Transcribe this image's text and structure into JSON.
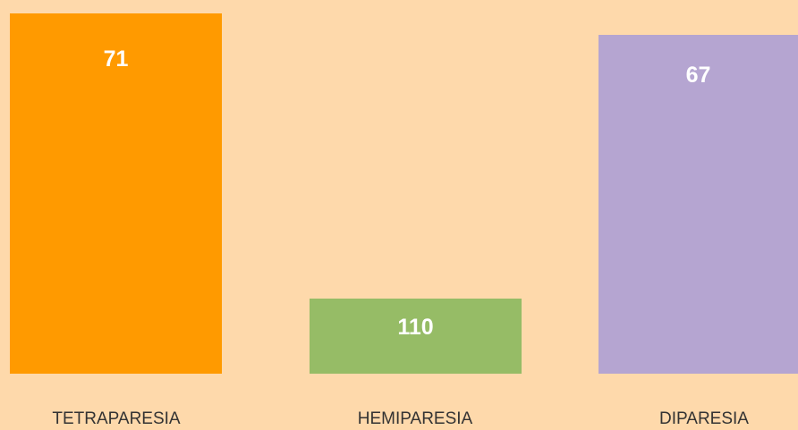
{
  "items": [
    {
      "label": "TETRAPARESIA",
      "value": 71
    },
    {
      "label": "HEMIPARESIA",
      "value": 110
    },
    {
      "label": "DIPARESIA",
      "value": 67
    }
  ]
}
